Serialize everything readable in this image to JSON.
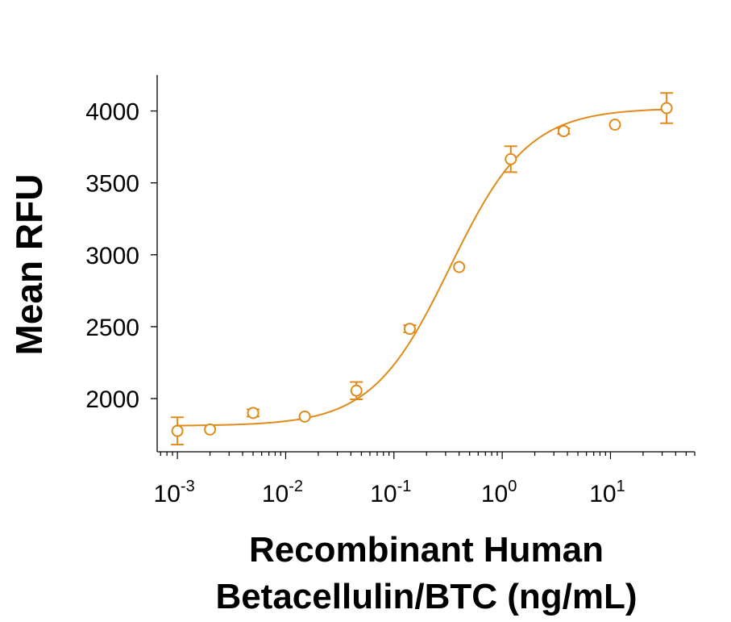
{
  "chart_data": {
    "type": "scatter",
    "title": "",
    "ylabel": "Mean RFU",
    "xlabel_lines": [
      "Recombinant Human",
      "Betacellulin/BTC (ng/mL)"
    ],
    "x_scale": "log",
    "xlim": [
      0.00065,
      60
    ],
    "ylim": [
      1630,
      4250
    ],
    "y_ticks": [
      2000,
      2500,
      3000,
      3500,
      4000
    ],
    "y_tick_labels": [
      "2000",
      "2500",
      "3000",
      "3500",
      "4000"
    ],
    "x_ticks": [
      0.001,
      0.01,
      0.1,
      1,
      10
    ],
    "x_tick_labels": [
      {
        "base": "10",
        "exp": "-3"
      },
      {
        "base": "10",
        "exp": "-2"
      },
      {
        "base": "10",
        "exp": "-1"
      },
      {
        "base": "10",
        "exp": "0"
      },
      {
        "base": "10",
        "exp": "1"
      }
    ],
    "color": "#E08A1A",
    "grid": false,
    "points": [
      {
        "x": 0.001,
        "y": 1775,
        "err": 95
      },
      {
        "x": 0.002,
        "y": 1785,
        "err": 0
      },
      {
        "x": 0.005,
        "y": 1900,
        "err": 25
      },
      {
        "x": 0.015,
        "y": 1875,
        "err": 0
      },
      {
        "x": 0.045,
        "y": 2055,
        "err": 60
      },
      {
        "x": 0.14,
        "y": 2485,
        "err": 25
      },
      {
        "x": 0.4,
        "y": 2915,
        "err": 0
      },
      {
        "x": 1.2,
        "y": 3665,
        "err": 90
      },
      {
        "x": 3.7,
        "y": 3860,
        "err": 20
      },
      {
        "x": 11,
        "y": 3905,
        "err": 0
      },
      {
        "x": 33,
        "y": 4020,
        "err": 105
      }
    ],
    "fit": {
      "model": "4PL",
      "bottom": 1810,
      "top": 4020,
      "ec50": 0.33,
      "hill": 1.2
    }
  }
}
